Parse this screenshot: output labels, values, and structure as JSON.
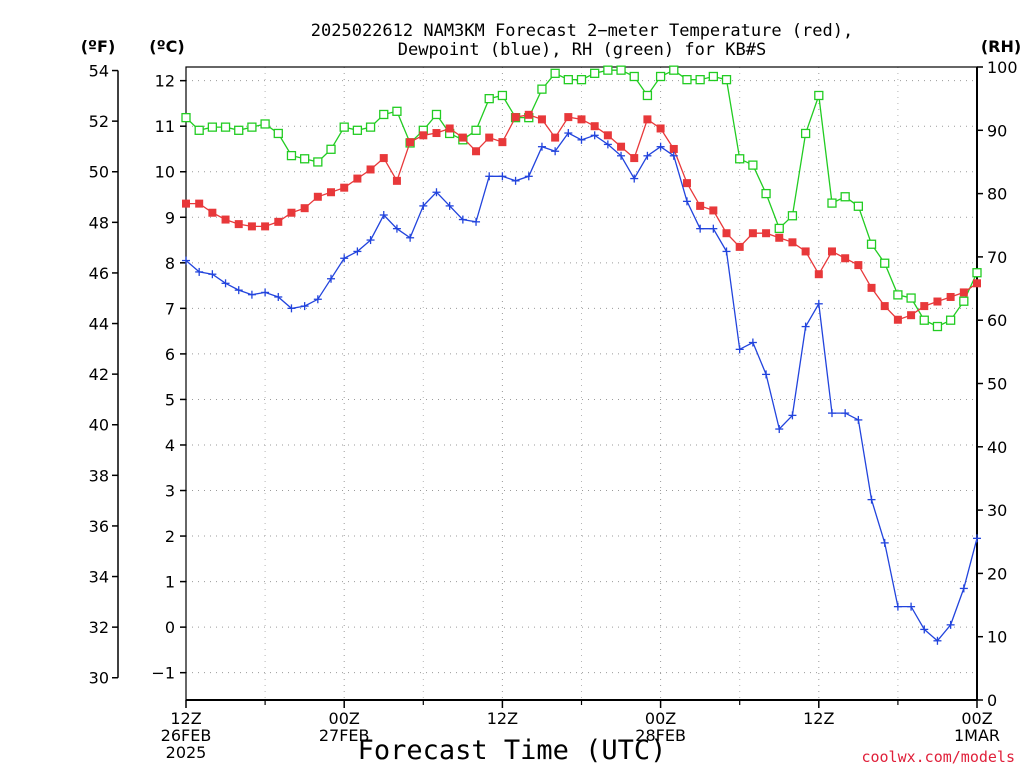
{
  "chart_data": {
    "type": "line",
    "title_lines": [
      "2025022612 NAM3KM Forecast 2−meter Temperature (red),",
      "Dewpoint (blue), RH (green) for KB#S"
    ],
    "xlabel": "Forecast Time (UTC)",
    "credit": "coolwx.com/models",
    "left_unit_f": "(ºF)",
    "left_unit_c": "(ºC)",
    "right_unit": "(RH)",
    "x_tick_labels": [
      [
        "12Z",
        "26FEB",
        "2025"
      ],
      [
        "00Z",
        "27FEB"
      ],
      [
        "12Z"
      ],
      [
        "00Z",
        "28FEB"
      ],
      [
        "12Z"
      ],
      [
        "00Z",
        "1MAR"
      ]
    ],
    "x_tick_hours": [
      0,
      12,
      24,
      36,
      48,
      60
    ],
    "xlim_hours": [
      0,
      60
    ],
    "celsius_axis": {
      "ylim": [
        -1.6,
        12.3
      ],
      "ticks": [
        -1,
        0,
        1,
        2,
        3,
        4,
        5,
        6,
        7,
        8,
        9,
        10,
        11,
        12
      ]
    },
    "fahrenheit_ticks": [
      30,
      32,
      34,
      36,
      38,
      40,
      42,
      44,
      46,
      48,
      50,
      52,
      54
    ],
    "rh_axis": {
      "ylim": [
        0,
        100
      ],
      "ticks": [
        0,
        10,
        20,
        30,
        40,
        50,
        60,
        70,
        80,
        90,
        100
      ]
    },
    "grid": true,
    "colors": {
      "temperature": "#e8383a",
      "dewpoint": "#2244dd",
      "rh": "#22cc22",
      "credit": "#e0203a"
    },
    "series": [
      {
        "key": "temperature",
        "axis": "celsius",
        "marker": "filled-square",
        "values": [
          9.3,
          9.3,
          9.1,
          8.95,
          8.85,
          8.8,
          8.8,
          8.9,
          9.1,
          9.2,
          9.45,
          9.55,
          9.65,
          9.85,
          10.05,
          10.3,
          9.8,
          10.65,
          10.8,
          10.85,
          10.95,
          10.75,
          10.45,
          10.75,
          10.65,
          11.2,
          11.25,
          11.15,
          10.75,
          11.2,
          11.15,
          11.0,
          10.8,
          10.55,
          10.3,
          11.15,
          10.95,
          10.5,
          9.75,
          9.25,
          9.15,
          8.65,
          8.35,
          8.65,
          8.65,
          8.55,
          8.45,
          8.25,
          7.75,
          8.25,
          8.1,
          7.95,
          7.45,
          7.05,
          6.75,
          6.85,
          7.05,
          7.15,
          7.25,
          7.35,
          7.55
        ]
      },
      {
        "key": "dewpoint",
        "axis": "celsius",
        "marker": "plus",
        "values": [
          8.05,
          7.8,
          7.75,
          7.55,
          7.4,
          7.3,
          7.35,
          7.25,
          7.0,
          7.05,
          7.2,
          7.65,
          8.1,
          8.25,
          8.5,
          9.05,
          8.75,
          8.55,
          9.25,
          9.55,
          9.25,
          8.95,
          8.9,
          9.9,
          9.9,
          9.8,
          9.9,
          10.55,
          10.45,
          10.85,
          10.7,
          10.8,
          10.6,
          10.35,
          9.85,
          10.35,
          10.55,
          10.35,
          9.35,
          8.75,
          8.75,
          8.25,
          6.1,
          6.25,
          5.55,
          4.35,
          4.65,
          6.6,
          7.1,
          4.7,
          4.7,
          4.55,
          2.8,
          1.85,
          0.45,
          0.45,
          -0.05,
          -0.3,
          0.05,
          0.85,
          1.95
        ]
      },
      {
        "key": "rh",
        "axis": "rh",
        "marker": "open-square",
        "values": [
          92,
          90,
          90.5,
          90.5,
          90,
          90.5,
          91,
          89.5,
          86,
          85.5,
          85,
          87,
          90.5,
          90,
          90.5,
          92.5,
          93,
          88,
          90,
          92.5,
          89.5,
          88.5,
          90,
          95,
          95.5,
          92,
          92,
          96.5,
          99,
          98,
          98,
          99,
          99.5,
          99.5,
          98.5,
          95.5,
          98.5,
          99.5,
          98,
          98,
          98.5,
          98,
          85.5,
          84.5,
          80,
          74.5,
          76.5,
          89.5,
          95.5,
          78.5,
          79.5,
          78,
          72,
          69,
          64,
          63.5,
          60,
          59,
          60,
          63,
          67.5
        ]
      }
    ]
  }
}
